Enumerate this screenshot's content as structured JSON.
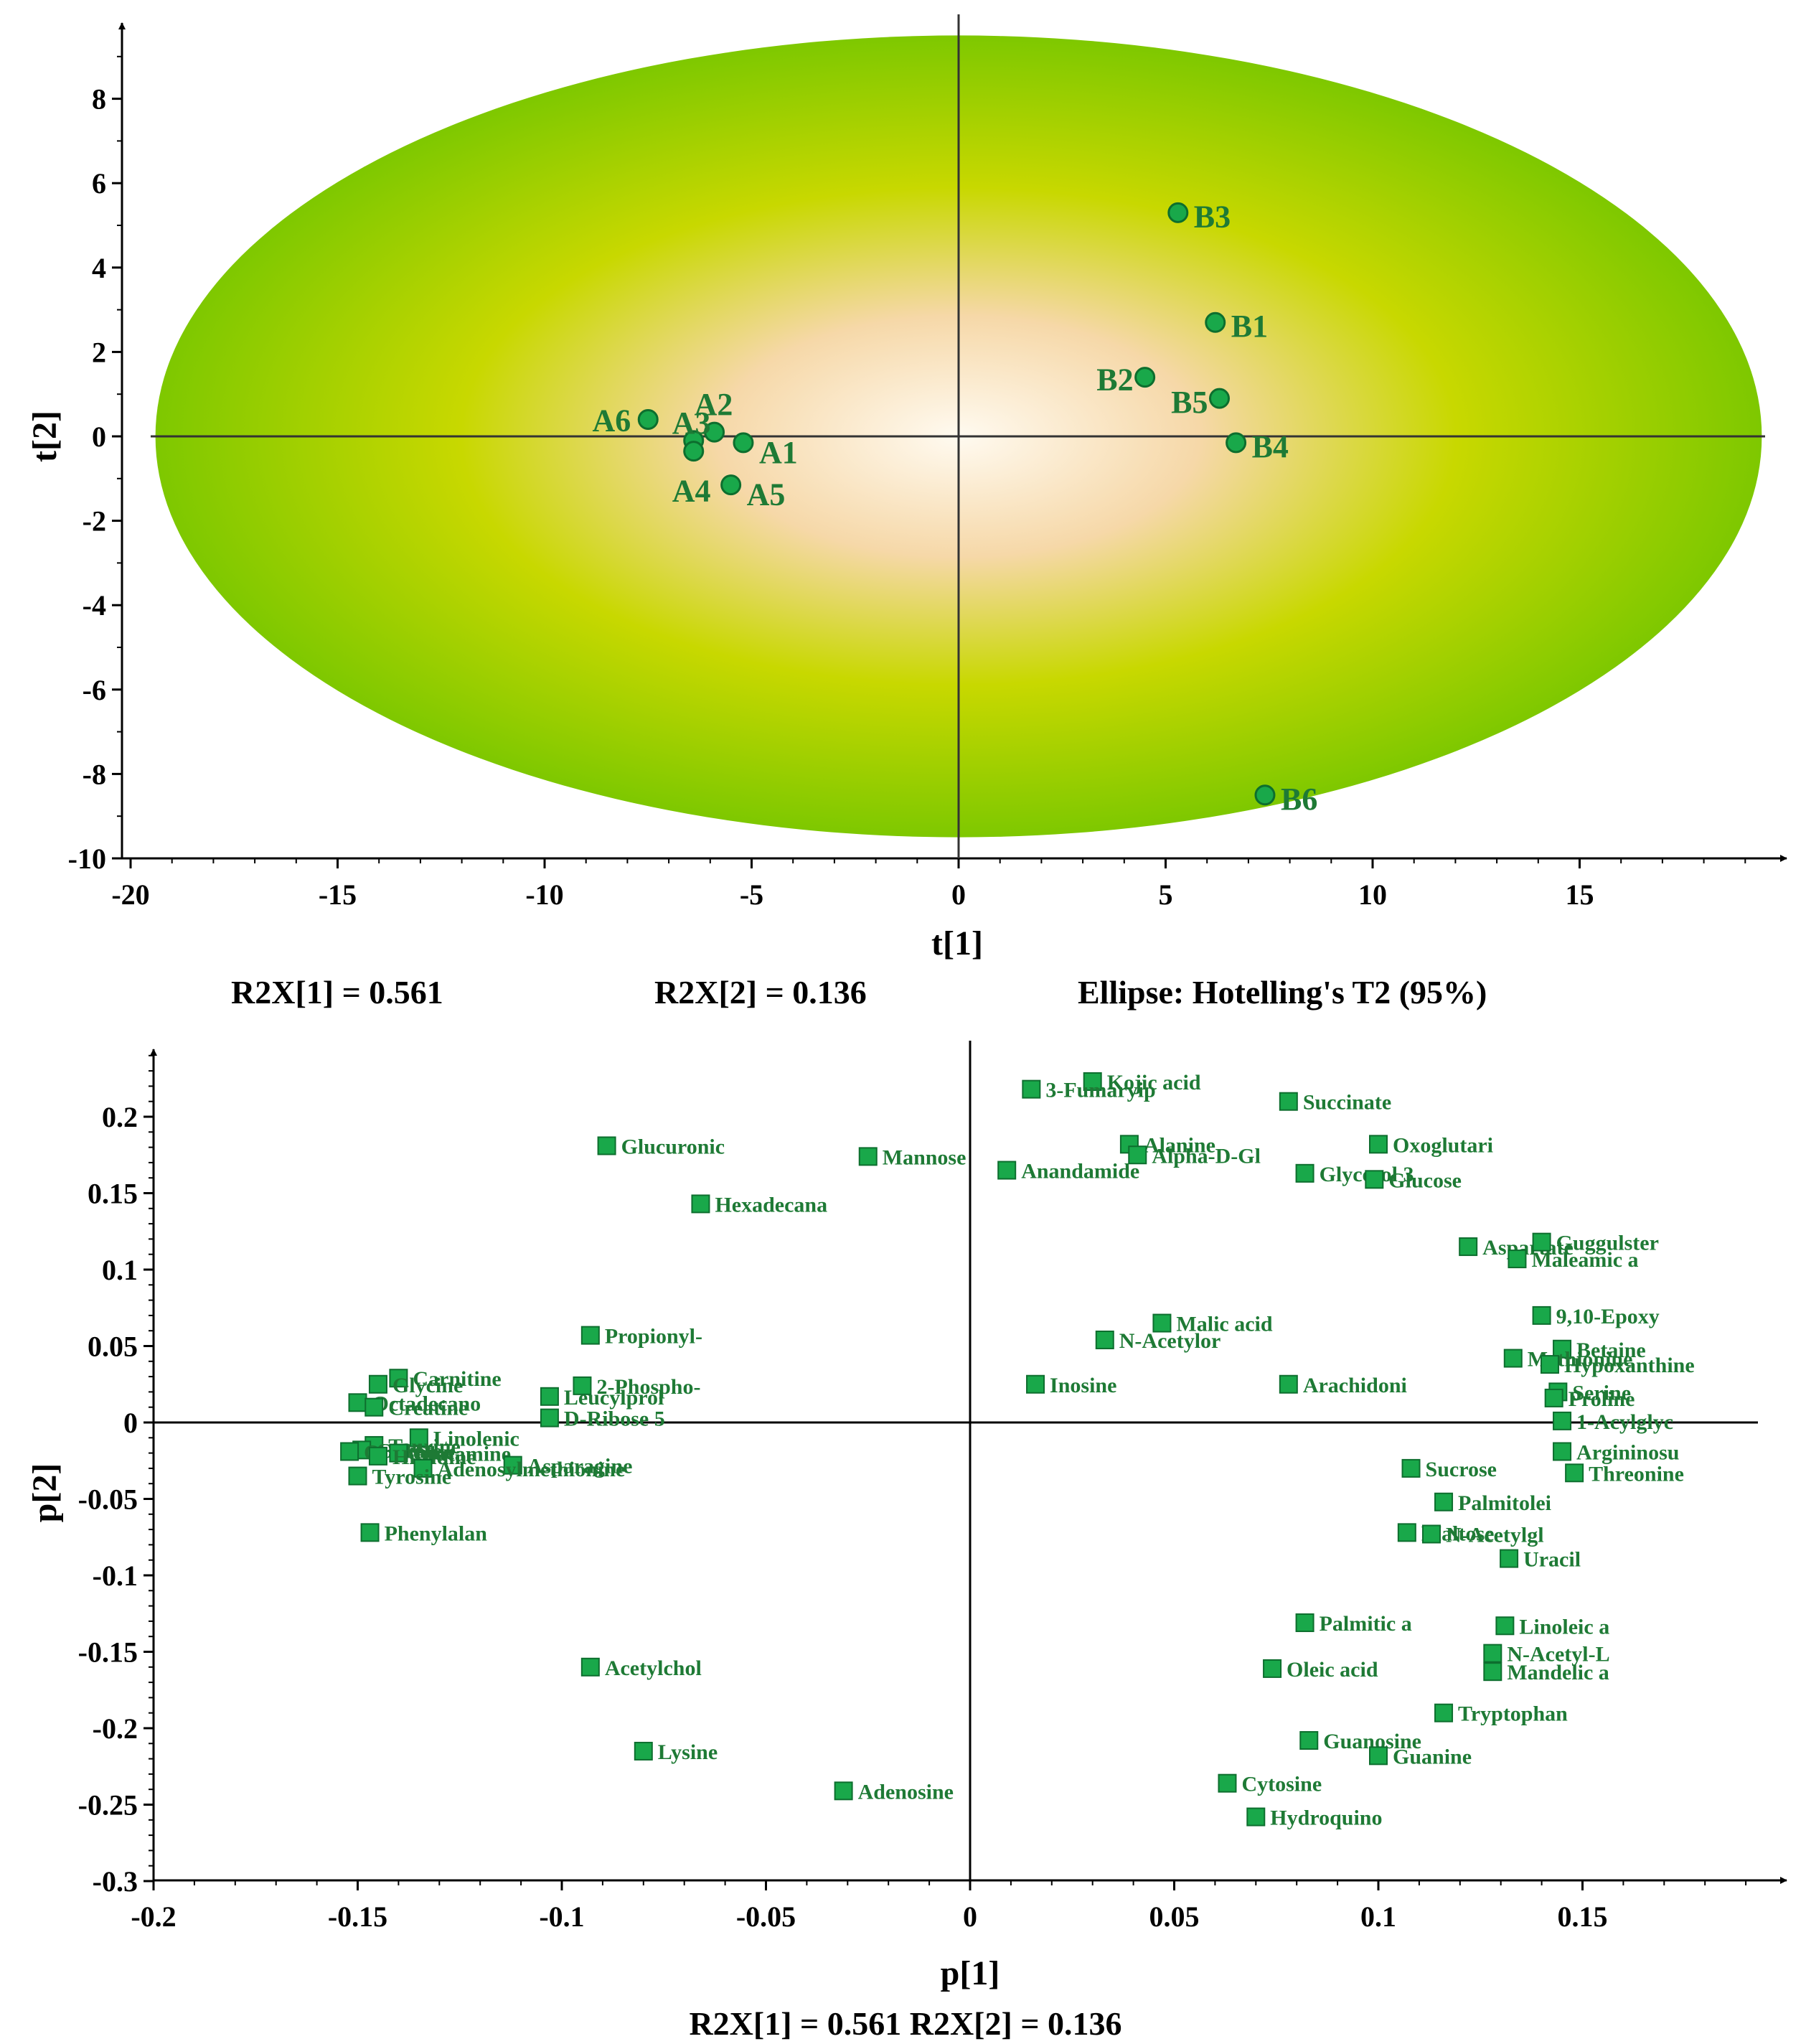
{
  "colors": {
    "marker_fill": "#19a84a",
    "marker_stroke": "#0d6e2e",
    "label": "#1e7a35",
    "ellipse_outer": "#7ec800",
    "ellipse_mid": "#c8d800",
    "ellipse_center": "#fffaf0"
  },
  "chart_data": [
    {
      "type": "scatter",
      "xlabel": "t[1]",
      "ylabel": "t[2]",
      "xlim": [
        -20,
        19.5
      ],
      "ylim": [
        -10,
        9.7
      ],
      "xticks": [
        "-20",
        "-15",
        "-10",
        "-5",
        "0",
        "5",
        "10",
        "15"
      ],
      "yticks": [
        "8",
        "6",
        "4",
        "2",
        "0",
        "-2",
        "-4",
        "-6",
        "-8",
        "-10"
      ],
      "ellipse": {
        "rx": 19.4,
        "ry": 9.5
      },
      "footer": [
        "R2X[1] = 0.561",
        "R2X[2] = 0.136",
        "Ellipse: Hotelling's T2 (95%)"
      ],
      "points": [
        {
          "label": "A1",
          "x": -5.2,
          "y": -0.15
        },
        {
          "label": "A2",
          "x": -5.9,
          "y": 0.1
        },
        {
          "label": "A3",
          "x": -6.4,
          "y": -0.1
        },
        {
          "label": "A4",
          "x": -6.4,
          "y": -0.35
        },
        {
          "label": "A5",
          "x": -5.5,
          "y": -1.15
        },
        {
          "label": "A6",
          "x": -7.5,
          "y": 0.4
        },
        {
          "label": "B1",
          "x": 6.2,
          "y": 2.7
        },
        {
          "label": "B2",
          "x": 4.5,
          "y": 1.4
        },
        {
          "label": "B3",
          "x": 5.3,
          "y": 5.3
        },
        {
          "label": "B4",
          "x": 6.7,
          "y": -0.15
        },
        {
          "label": "B5",
          "x": 6.3,
          "y": 0.9
        },
        {
          "label": "B6",
          "x": 7.4,
          "y": -8.5
        }
      ]
    },
    {
      "type": "scatter",
      "xlabel": "p[1]",
      "ylabel": "p[2]",
      "xlim": [
        -0.2,
        0.2
      ],
      "ylim": [
        -0.3,
        0.25
      ],
      "xticks": [
        "-0.2",
        "-0.15",
        "-0.1",
        "-0.05",
        "0",
        "0.05",
        "0.1",
        "0.15"
      ],
      "yticks": [
        "0.2",
        "0.15",
        "0.1",
        "0.05",
        "0",
        "-0.05",
        "-0.1",
        "-0.15",
        "-0.2",
        "-0.25",
        "-0.3"
      ],
      "footer": "R2X[1] = 0.561 R2X[2] = 0.136",
      "points": [
        {
          "label": "Kojic acid",
          "x": 0.03,
          "y": 0.223
        },
        {
          "label": "3-Fumaryip",
          "x": 0.015,
          "y": 0.218
        },
        {
          "label": "Succinate",
          "x": 0.078,
          "y": 0.21
        },
        {
          "label": "Alanine",
          "x": 0.039,
          "y": 0.182
        },
        {
          "label": "Alpha-D-Gl",
          "x": 0.041,
          "y": 0.175
        },
        {
          "label": "Oxoglutari",
          "x": 0.1,
          "y": 0.182
        },
        {
          "label": "Glucuronic",
          "x": -0.089,
          "y": 0.181
        },
        {
          "label": "Mannose",
          "x": -0.025,
          "y": 0.174
        },
        {
          "label": "Anandamide",
          "x": 0.009,
          "y": 0.165
        },
        {
          "label": "Glycerol 3",
          "x": 0.082,
          "y": 0.163
        },
        {
          "label": "Glucose",
          "x": 0.099,
          "y": 0.159
        },
        {
          "label": "Hexadecana",
          "x": -0.066,
          "y": 0.143
        },
        {
          "label": "Aspartate",
          "x": 0.122,
          "y": 0.115
        },
        {
          "label": "Guggulster",
          "x": 0.14,
          "y": 0.118
        },
        {
          "label": "Maleamic a",
          "x": 0.134,
          "y": 0.107
        },
        {
          "label": "9,10-Epoxy",
          "x": 0.14,
          "y": 0.07
        },
        {
          "label": "Malic acid",
          "x": 0.047,
          "y": 0.065
        },
        {
          "label": "Propionyl-",
          "x": -0.093,
          "y": 0.057
        },
        {
          "label": "N-Acetylor",
          "x": 0.033,
          "y": 0.054
        },
        {
          "label": "Betaine",
          "x": 0.145,
          "y": 0.048
        },
        {
          "label": "Methionine",
          "x": 0.133,
          "y": 0.042
        },
        {
          "label": "Hypoxanthine",
          "x": 0.142,
          "y": 0.038
        },
        {
          "label": "Carnitine",
          "x": -0.14,
          "y": 0.029
        },
        {
          "label": "Glycine",
          "x": -0.145,
          "y": 0.025
        },
        {
          "label": "2-Phospho-",
          "x": -0.095,
          "y": 0.024
        },
        {
          "label": "Inosine",
          "x": 0.016,
          "y": 0.025
        },
        {
          "label": "Arachidoni",
          "x": 0.078,
          "y": 0.025
        },
        {
          "label": "Serine",
          "x": 0.144,
          "y": 0.02
        },
        {
          "label": "Proline",
          "x": 0.143,
          "y": 0.016
        },
        {
          "label": "Leucylprol",
          "x": -0.103,
          "y": 0.017
        },
        {
          "label": "Octadecano",
          "x": -0.15,
          "y": 0.013
        },
        {
          "label": "Creatine",
          "x": -0.146,
          "y": 0.01
        },
        {
          "label": "D-Ribose 5",
          "x": -0.103,
          "y": 0.003
        },
        {
          "label": "1-Acylglyc",
          "x": 0.145,
          "y": 0.001
        },
        {
          "label": "Linolenic",
          "x": -0.135,
          "y": -0.01
        },
        {
          "label": "Taurine",
          "x": -0.146,
          "y": -0.015
        },
        {
          "label": "Citrate",
          "x": -0.149,
          "y": -0.018
        },
        {
          "label": "Ornithine",
          "x": -0.152,
          "y": -0.019
        },
        {
          "label": "Glutamine",
          "x": -0.14,
          "y": -0.02
        },
        {
          "label": "Histidine",
          "x": -0.145,
          "y": -0.022
        },
        {
          "label": "Asparagine",
          "x": -0.112,
          "y": -0.028
        },
        {
          "label": "Adenosylmethionine",
          "x": -0.134,
          "y": -0.03
        },
        {
          "label": "Tyrosine",
          "x": -0.15,
          "y": -0.035
        },
        {
          "label": "Argininosu",
          "x": 0.145,
          "y": -0.019
        },
        {
          "label": "Sucrose",
          "x": 0.108,
          "y": -0.03
        },
        {
          "label": "Threonine",
          "x": 0.148,
          "y": -0.033
        },
        {
          "label": "Palmitolei",
          "x": 0.116,
          "y": -0.052
        },
        {
          "label": "Phenylalan",
          "x": -0.147,
          "y": -0.072
        },
        {
          "label": "Maltose",
          "x": 0.107,
          "y": -0.072
        },
        {
          "label": "N-Acetylgl",
          "x": 0.113,
          "y": -0.073
        },
        {
          "label": "Uracil",
          "x": 0.132,
          "y": -0.089
        },
        {
          "label": "Palmitic a",
          "x": 0.082,
          "y": -0.131
        },
        {
          "label": "Linoleic a",
          "x": 0.131,
          "y": -0.133
        },
        {
          "label": "N-Acetyl-L",
          "x": 0.128,
          "y": -0.151
        },
        {
          "label": "Acetylchol",
          "x": -0.093,
          "y": -0.16
        },
        {
          "label": "Oleic acid",
          "x": 0.074,
          "y": -0.161
        },
        {
          "label": "Mandelic a",
          "x": 0.128,
          "y": -0.163
        },
        {
          "label": "Tryptophan",
          "x": 0.116,
          "y": -0.19
        },
        {
          "label": "Lysine",
          "x": -0.08,
          "y": -0.215
        },
        {
          "label": "Guanosine",
          "x": 0.083,
          "y": -0.208
        },
        {
          "label": "Guanine",
          "x": 0.1,
          "y": -0.218
        },
        {
          "label": "Cytosine",
          "x": 0.063,
          "y": -0.236
        },
        {
          "label": "Adenosine",
          "x": -0.031,
          "y": -0.241
        },
        {
          "label": "Hydroquino",
          "x": 0.07,
          "y": -0.258
        }
      ]
    }
  ]
}
